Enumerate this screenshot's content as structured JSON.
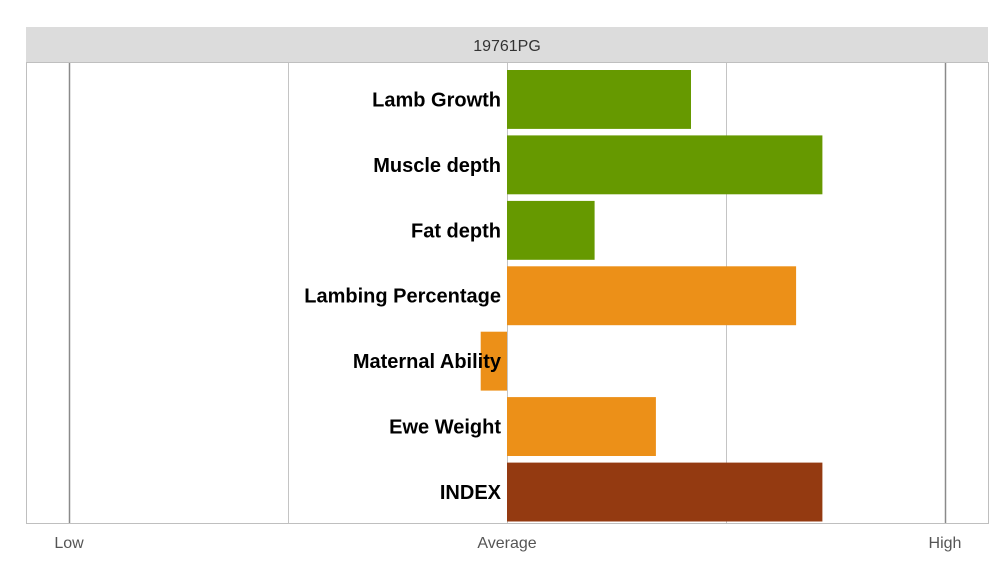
{
  "chart_data": {
    "type": "bar",
    "title": "19761PG",
    "orientation": "horizontal",
    "x_ticks": [
      "Low",
      "Average",
      "High"
    ],
    "xlim": [
      -1,
      1
    ],
    "categories": [
      "Lamb Growth",
      "Muscle depth",
      "Fat depth",
      "Lambing Percentage",
      "Maternal Ability",
      "Ewe Weight",
      "INDEX"
    ],
    "values": [
      0.42,
      0.72,
      0.2,
      0.66,
      -0.06,
      0.34,
      0.72
    ],
    "colors": [
      "#669900",
      "#669900",
      "#669900",
      "#EC9018",
      "#EC9018",
      "#EC9018",
      "#943A11"
    ],
    "grid": true
  }
}
